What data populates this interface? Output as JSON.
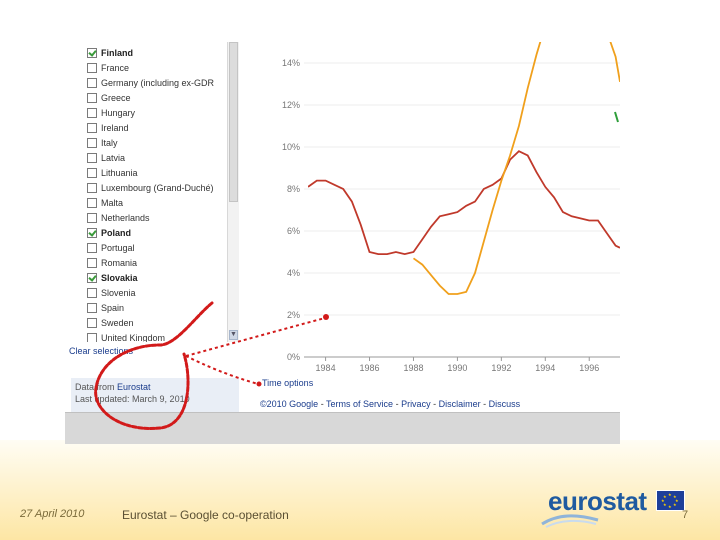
{
  "countries": [
    {
      "label": "Finland",
      "checked": true
    },
    {
      "label": "France",
      "checked": false
    },
    {
      "label": "Germany (including ex-GDR",
      "checked": false
    },
    {
      "label": "Greece",
      "checked": false
    },
    {
      "label": "Hungary",
      "checked": false
    },
    {
      "label": "Ireland",
      "checked": false
    },
    {
      "label": "Italy",
      "checked": false
    },
    {
      "label": "Latvia",
      "checked": false
    },
    {
      "label": "Lithuania",
      "checked": false
    },
    {
      "label": "Luxembourg (Grand-Duché)",
      "checked": false
    },
    {
      "label": "Malta",
      "checked": false
    },
    {
      "label": "Netherlands",
      "checked": false
    },
    {
      "label": "Poland",
      "checked": true
    },
    {
      "label": "Portugal",
      "checked": false
    },
    {
      "label": "Romania",
      "checked": false
    },
    {
      "label": "Slovakia",
      "checked": true
    },
    {
      "label": "Slovenia",
      "checked": false
    },
    {
      "label": "Spain",
      "checked": false
    },
    {
      "label": "Sweden",
      "checked": false
    },
    {
      "label": "United Kingdom",
      "checked": false
    }
  ],
  "clear_selections": "Clear selections",
  "info": {
    "data_from_prefix": "Data from ",
    "data_source": "Eurostat",
    "last_updated": "Last updated: March 9, 2010"
  },
  "time_options": "Time options",
  "footer": {
    "copyright": "©2010 Google",
    "sep": " - ",
    "terms": "Terms of Service",
    "privacy": "Privacy",
    "disclaimer": "Disclaimer",
    "discuss": "Discuss"
  },
  "chart_data": {
    "type": "line",
    "y_ticks": [
      "0%",
      "2%",
      "4%",
      "6%",
      "8%",
      "10%",
      "12%",
      "14%"
    ],
    "y_tick_values": [
      0,
      2,
      4,
      6,
      8,
      10,
      12,
      14
    ],
    "x_ticks": [
      "1984",
      "1986",
      "1988",
      "1990",
      "1992",
      "1994",
      "1996"
    ],
    "x_tick_values": [
      1984,
      1986,
      1988,
      1990,
      1992,
      1994,
      1996
    ],
    "xlim": [
      1983.2,
      1997.4
    ],
    "ylim": [
      0,
      15
    ],
    "series": [
      {
        "color": "#c0392b",
        "points": [
          [
            1983.2,
            8.1
          ],
          [
            1983.6,
            8.4
          ],
          [
            1984.0,
            8.4
          ],
          [
            1984.4,
            8.2
          ],
          [
            1984.8,
            8.0
          ],
          [
            1985.2,
            7.4
          ],
          [
            1985.6,
            6.3
          ],
          [
            1986.0,
            5.0
          ],
          [
            1986.4,
            4.9
          ],
          [
            1986.8,
            4.9
          ],
          [
            1987.2,
            5.0
          ],
          [
            1987.6,
            4.9
          ],
          [
            1988.0,
            5.0
          ],
          [
            1988.4,
            5.6
          ],
          [
            1988.8,
            6.2
          ],
          [
            1989.2,
            6.7
          ],
          [
            1989.6,
            6.8
          ],
          [
            1990.0,
            6.9
          ],
          [
            1990.4,
            7.2
          ],
          [
            1990.8,
            7.4
          ],
          [
            1991.2,
            8.0
          ],
          [
            1991.6,
            8.2
          ],
          [
            1992.0,
            8.5
          ],
          [
            1992.4,
            9.4
          ],
          [
            1992.8,
            9.8
          ],
          [
            1993.2,
            9.6
          ],
          [
            1993.6,
            8.8
          ],
          [
            1994.0,
            8.1
          ],
          [
            1994.4,
            7.6
          ],
          [
            1994.8,
            6.9
          ],
          [
            1995.2,
            6.7
          ],
          [
            1995.6,
            6.6
          ],
          [
            1996.0,
            6.5
          ],
          [
            1996.4,
            6.5
          ],
          [
            1996.8,
            5.9
          ],
          [
            1997.2,
            5.3
          ],
          [
            1997.4,
            5.2
          ]
        ]
      },
      {
        "color": "#f0a01c",
        "points": [
          [
            1988.0,
            4.7
          ],
          [
            1988.4,
            4.4
          ],
          [
            1988.8,
            3.9
          ],
          [
            1989.2,
            3.4
          ],
          [
            1989.6,
            3.0
          ],
          [
            1990.0,
            3.0
          ],
          [
            1990.4,
            3.1
          ],
          [
            1990.8,
            4.0
          ],
          [
            1991.2,
            5.5
          ],
          [
            1991.6,
            7.0
          ],
          [
            1992.0,
            8.4
          ],
          [
            1992.4,
            9.6
          ],
          [
            1992.8,
            11.0
          ],
          [
            1993.2,
            12.8
          ],
          [
            1993.6,
            14.4
          ],
          [
            1994.0,
            15.8
          ],
          [
            1994.4,
            16.6
          ],
          [
            1995.2,
            16.8
          ],
          [
            1995.6,
            15.9
          ],
          [
            1996.0,
            16.2
          ],
          [
            1996.4,
            15.9
          ],
          [
            1996.8,
            15.5
          ],
          [
            1997.2,
            14.3
          ],
          [
            1997.4,
            13.1
          ]
        ]
      }
    ]
  },
  "slide": {
    "date": "27 April 2010",
    "title": "Eurostat – Google co-operation",
    "page_number": "7",
    "logo_text": "eurostat"
  }
}
